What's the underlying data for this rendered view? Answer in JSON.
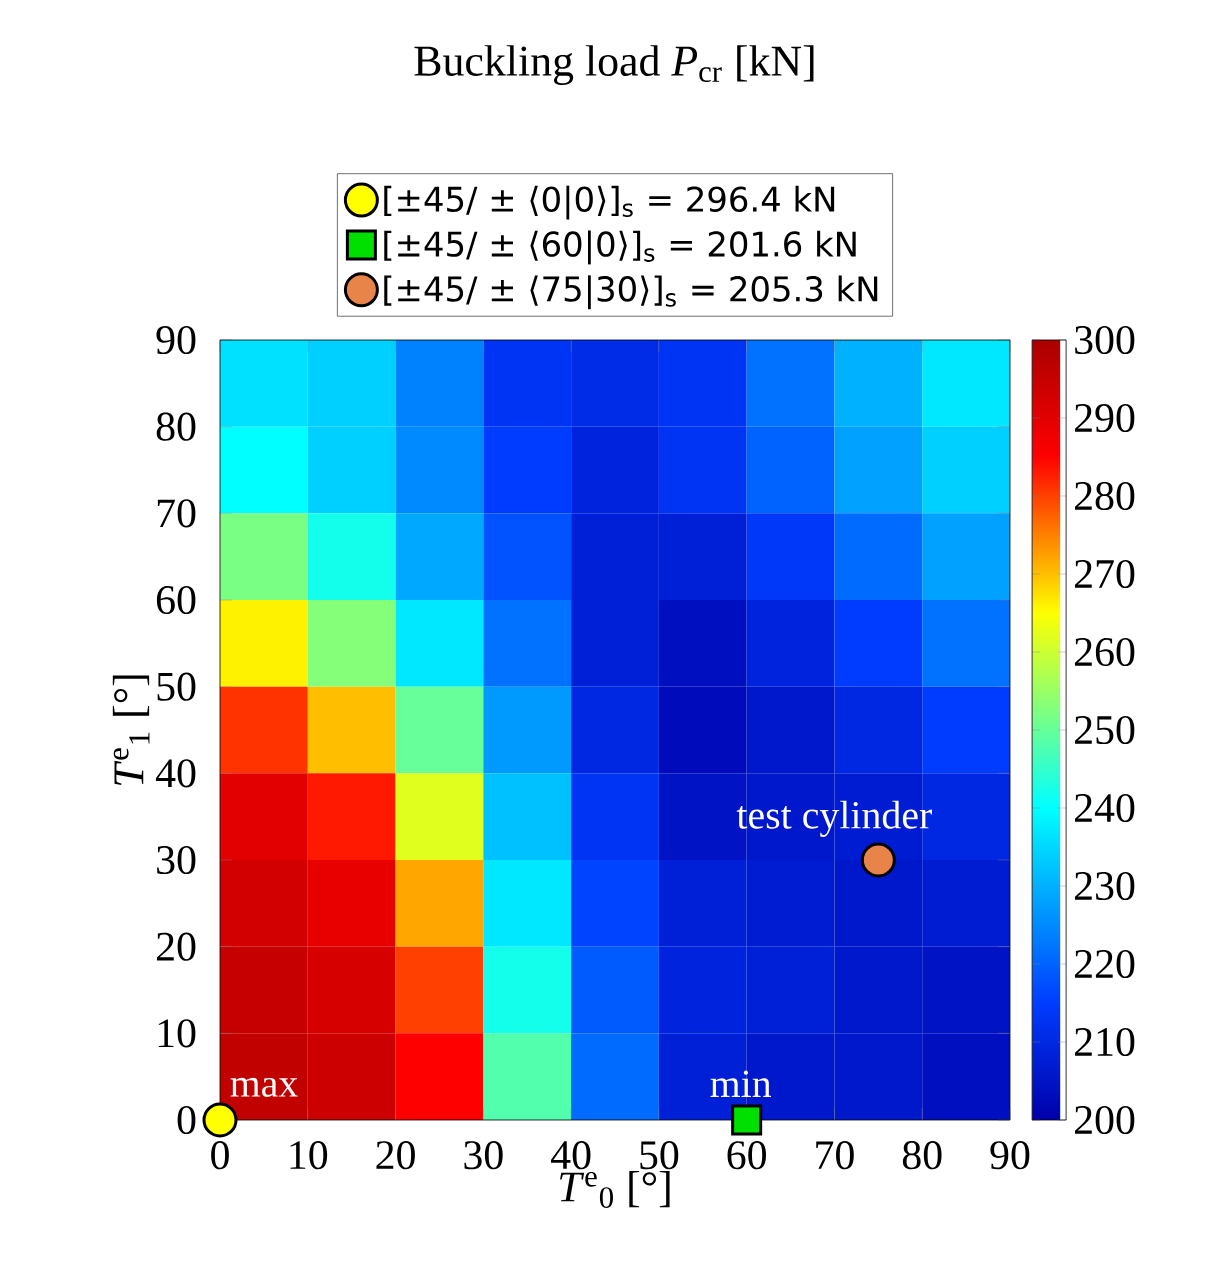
{
  "chart_data": [
    {
      "type": "heatmap",
      "title": "Buckling load *P*$_{cr}$ [kN]",
      "categories": [
        null,
        null,
        null,
        null,
        null,
        null,
        null,
        null,
        null
      ],
      "y_categories": [
        null,
        null,
        null,
        null,
        null,
        null,
        null,
        null,
        null
      ],
      "cells": [
        [
          236,
          234,
          224,
          213,
          211,
          213,
          222,
          230,
          237
        ],
        [
          240,
          234,
          225,
          215,
          209,
          213,
          220,
          228,
          234
        ],
        [
          252,
          242,
          229,
          218,
          208,
          208,
          214,
          221,
          228
        ],
        [
          266,
          253,
          237,
          222,
          208,
          204,
          209,
          215,
          222
        ],
        [
          281,
          270,
          250,
          227,
          210,
          203,
          206,
          210,
          215
        ],
        [
          290,
          283,
          262,
          232,
          213,
          205,
          206,
          207,
          210
        ],
        [
          293,
          289,
          272,
          237,
          216,
          208,
          207,
          206,
          207
        ],
        [
          295,
          292,
          280,
          242,
          219,
          209,
          208,
          206,
          205
        ],
        [
          296,
          294,
          285,
          248,
          221,
          208,
          206,
          206,
          204
        ]
      ],
      "clim": [
        200,
        300
      ],
      "cticks": [
        200,
        210,
        220,
        230,
        240,
        250,
        260,
        270,
        280,
        290,
        300
      ],
      "tick_labels": false
    },
    {
      "type": "scatter",
      "xlabel": "*T*$^{e}$$_{0}$ [°]",
      "ylabel": "*T*$^{e}$$_{1}$ [°]",
      "xlim": [
        0,
        90
      ],
      "ylim": [
        0,
        90
      ],
      "xticks": [
        0,
        10,
        20,
        30,
        40,
        50,
        60,
        70,
        80,
        90
      ],
      "yticks": [
        0,
        10,
        20,
        30,
        40,
        50,
        60,
        70,
        80,
        90
      ],
      "legend": "top",
      "series": [
        {
          "name": "[±45/ ± ⟨0|0⟩]$_{s}$ = 296.4 kN",
          "color": "#ffff00",
          "marker": "circle",
          "x": [
            0
          ],
          "values": [
            0
          ]
        },
        {
          "name": "[±45/ ± ⟨60|0⟩]$_{s}$ = 201.6 kN",
          "color": "#00e000",
          "marker": "square",
          "x": [
            60
          ],
          "values": [
            0
          ]
        },
        {
          "name": "[±45/ ± ⟨75|30⟩]$_{s}$ = 205.3 kN",
          "color": "#e8834a",
          "marker": "circle",
          "x": [
            75
          ],
          "values": [
            30
          ]
        }
      ],
      "annotations": [
        {
          "text": "max",
          "x": 0,
          "y": 0
        },
        {
          "text": "min",
          "x": 60,
          "y": 0
        },
        {
          "text": "test cylinder",
          "x": 75,
          "y": 30
        }
      ]
    }
  ]
}
